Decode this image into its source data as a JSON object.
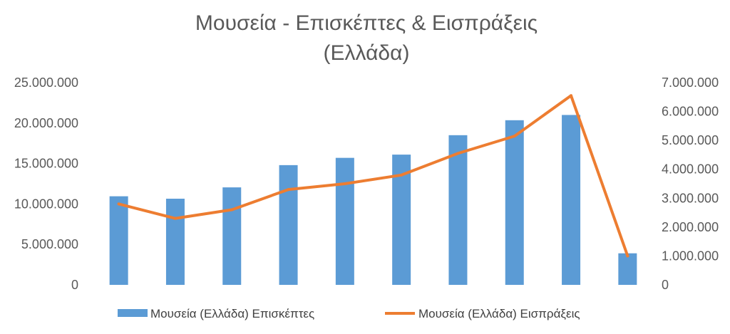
{
  "chart_data": {
    "type": "bar",
    "title": "Μουσεία - Επισκέπτες & Εισπράξεις",
    "subtitle": "(Ελλάδα)",
    "categories": [
      "",
      "",
      "",
      "",
      "",
      "",
      "",
      "",
      "",
      ""
    ],
    "series": [
      {
        "name": "Μουσεία (Ελλάδα) Επισκέπτες",
        "type": "bar",
        "axis": "left",
        "color": "#5B9BD5",
        "values": [
          10950000,
          10650000,
          12050000,
          14800000,
          15700000,
          16100000,
          18500000,
          20350000,
          21000000,
          3900000
        ]
      },
      {
        "name": "Μουσεία (Ελλάδα) Εισπράξεις",
        "type": "line",
        "axis": "right",
        "color": "#ED7D31",
        "values": [
          2800000,
          2300000,
          2600000,
          3300000,
          3500000,
          3800000,
          4550000,
          5150000,
          6550000,
          1000000
        ]
      }
    ],
    "y_left": {
      "lim": [
        0,
        25000000
      ],
      "ticks": [
        0,
        5000000,
        10000000,
        15000000,
        20000000,
        25000000
      ],
      "tick_labels": [
        "0",
        "5.000.000",
        "10.000.000",
        "15.000.000",
        "20.000.000",
        "25.000.000"
      ]
    },
    "y_right": {
      "lim": [
        0,
        7000000
      ],
      "ticks": [
        0,
        1000000,
        2000000,
        3000000,
        4000000,
        5000000,
        6000000,
        7000000
      ],
      "tick_labels": [
        "0",
        "1.000.000",
        "2.000.000",
        "3.000.000",
        "4.000.000",
        "5.000.000",
        "6.000.000",
        "7.000.000"
      ]
    },
    "grid": false,
    "legend_position": "bottom"
  }
}
